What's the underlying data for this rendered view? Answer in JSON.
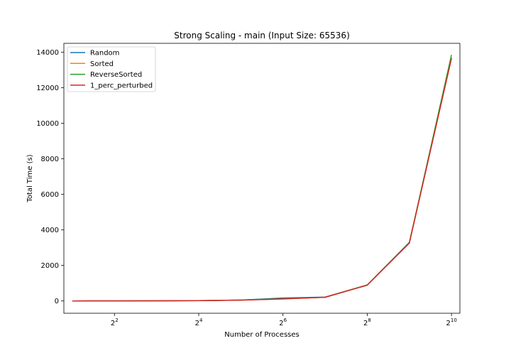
{
  "chart_data": {
    "type": "line",
    "title": "Strong Scaling - main (Input Size: 65536)",
    "xlabel": "Number of Processes",
    "ylabel": "Total Time (s)",
    "xscale": "log2",
    "x": [
      2,
      4,
      8,
      16,
      32,
      64,
      128,
      256,
      512,
      1024
    ],
    "xlim": [
      1.74,
      1176
    ],
    "ylim": [
      -690,
      14500
    ],
    "xticks": [
      {
        "value": 4,
        "base": "2",
        "exp": "2"
      },
      {
        "value": 16,
        "base": "2",
        "exp": "4"
      },
      {
        "value": 64,
        "base": "2",
        "exp": "6"
      },
      {
        "value": 256,
        "base": "2",
        "exp": "8"
      },
      {
        "value": 1024,
        "base": "2",
        "exp": "10"
      }
    ],
    "yticks": [
      0,
      2000,
      4000,
      6000,
      8000,
      10000,
      12000,
      14000
    ],
    "grid": false,
    "legend_position": "top-left",
    "series": [
      {
        "name": "Random",
        "color": "#1f77b4",
        "values": [
          0,
          5,
          10,
          20,
          50,
          170,
          220,
          900,
          3300,
          13700
        ]
      },
      {
        "name": "Sorted",
        "color": "#ff7f0e",
        "values": [
          0,
          5,
          10,
          20,
          50,
          120,
          210,
          900,
          3270,
          13700
        ]
      },
      {
        "name": "ReverseSorted",
        "color": "#2ca02c",
        "values": [
          0,
          5,
          10,
          20,
          50,
          130,
          210,
          900,
          3280,
          13850
        ]
      },
      {
        "name": "1_perc_perturbed",
        "color": "#d62728",
        "values": [
          0,
          5,
          10,
          20,
          50,
          115,
          210,
          890,
          3260,
          13650
        ]
      }
    ]
  }
}
